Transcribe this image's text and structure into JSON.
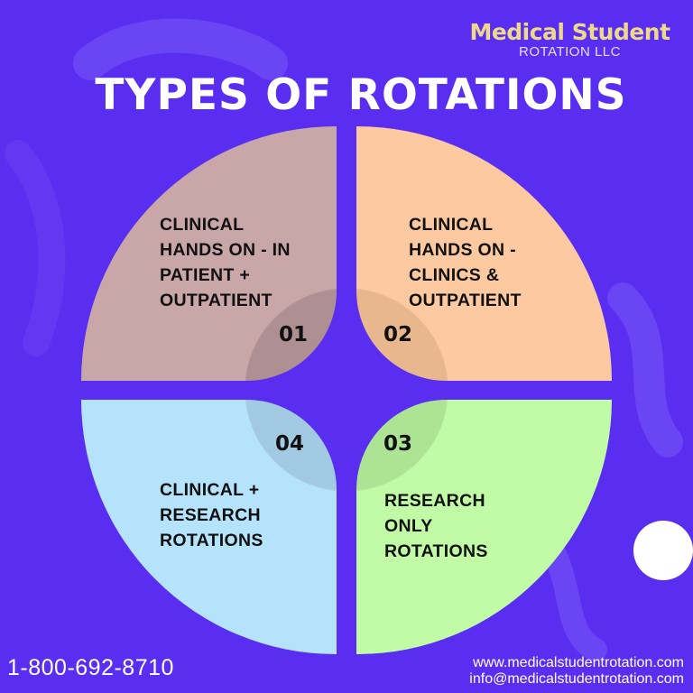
{
  "brand": {
    "name": "Medical Student",
    "sub": "ROTATION LLC"
  },
  "title": "TYPES OF ROTATIONS",
  "colors": {
    "background": "#5a2ef0",
    "q1": "#c9a6a8",
    "q2": "#fcc9a0",
    "q3": "#c1fba6",
    "q4": "#b6e3fc",
    "logo": "#ecd98a"
  },
  "quadrants": [
    {
      "number": "01",
      "lines": [
        "CLINICAL",
        "HANDS ON - IN",
        "PATIENT +",
        "OUTPATIENT"
      ]
    },
    {
      "number": "02",
      "lines": [
        "CLINICAL",
        "HANDS ON -",
        "CLINICS &",
        "OUTPATIENT"
      ]
    },
    {
      "number": "03",
      "lines": [
        "RESEARCH",
        "ONLY",
        "ROTATIONS"
      ]
    },
    {
      "number": "04",
      "lines": [
        "CLINICAL +",
        "RESEARCH",
        "ROTATIONS"
      ]
    }
  ],
  "footer": {
    "phone": "1-800-692-8710",
    "website": "www.medicalstudentrotation.com",
    "email": "info@medicalstudentrotation.com"
  }
}
